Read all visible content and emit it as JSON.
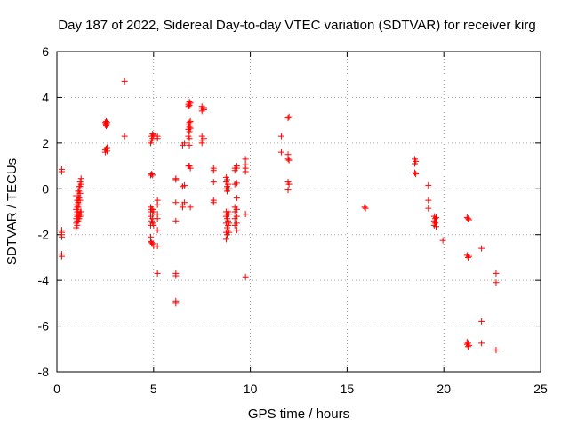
{
  "chart_data": {
    "type": "scatter",
    "title": "Day 187 of 2022, Sidereal Day-to-day VTEC variation (SDTVAR) for receiver kirg",
    "xlabel": "GPS time / hours",
    "ylabel": "SDTVAR / TECUs",
    "xlim": [
      0,
      25
    ],
    "ylim": [
      -8,
      6
    ],
    "xticks": [
      0,
      5,
      10,
      15,
      20,
      25
    ],
    "yticks": [
      -8,
      -6,
      -4,
      -2,
      0,
      2,
      4,
      6
    ],
    "grid": true,
    "marker": "+",
    "series": [
      {
        "name": "SDTVAR",
        "color": "#ff0000",
        "points": [
          [
            0.25,
            0.85
          ],
          [
            0.25,
            0.75
          ],
          [
            0.25,
            -1.8
          ],
          [
            0.25,
            -1.9
          ],
          [
            0.25,
            -2.0
          ],
          [
            0.25,
            -2.1
          ],
          [
            0.25,
            -2.85
          ],
          [
            0.25,
            -2.95
          ],
          [
            1.0,
            -0.3
          ],
          [
            1.0,
            -0.7
          ],
          [
            1.0,
            -0.9
          ],
          [
            1.0,
            -1.1
          ],
          [
            1.0,
            -1.3
          ],
          [
            1.0,
            -1.5
          ],
          [
            1.0,
            -1.7
          ],
          [
            1.05,
            -0.5
          ],
          [
            1.05,
            -0.8
          ],
          [
            1.05,
            -1.0
          ],
          [
            1.05,
            -1.2
          ],
          [
            1.05,
            -1.4
          ],
          [
            1.05,
            -1.6
          ],
          [
            1.1,
            -0.1
          ],
          [
            1.1,
            -0.3
          ],
          [
            1.1,
            -0.5
          ],
          [
            1.1,
            -0.6
          ],
          [
            1.1,
            -0.8
          ],
          [
            1.1,
            -1.0
          ],
          [
            1.1,
            -1.2
          ],
          [
            1.1,
            -1.4
          ],
          [
            1.15,
            0.1
          ],
          [
            1.15,
            -0.1
          ],
          [
            1.15,
            -0.4
          ],
          [
            1.15,
            -0.7
          ],
          [
            1.15,
            -1.1
          ],
          [
            1.15,
            -1.3
          ],
          [
            1.2,
            0.3
          ],
          [
            1.2,
            0.1
          ],
          [
            1.2,
            -0.2
          ],
          [
            1.2,
            -0.5
          ],
          [
            1.2,
            -1.0
          ],
          [
            1.2,
            -1.2
          ],
          [
            1.25,
            0.45
          ],
          [
            1.25,
            0.2
          ],
          [
            1.25,
            -1.0
          ],
          [
            1.25,
            -1.1
          ],
          [
            2.5,
            2.9
          ],
          [
            2.5,
            2.8
          ],
          [
            2.55,
            2.95
          ],
          [
            2.55,
            2.85
          ],
          [
            2.55,
            2.75
          ],
          [
            2.6,
            2.9
          ],
          [
            2.6,
            2.8
          ],
          [
            2.5,
            1.7
          ],
          [
            2.5,
            1.6
          ],
          [
            2.55,
            1.75
          ],
          [
            2.6,
            1.65
          ],
          [
            2.6,
            1.8
          ],
          [
            3.5,
            4.7
          ],
          [
            3.5,
            2.3
          ],
          [
            4.85,
            -0.8
          ],
          [
            4.85,
            -1.0
          ],
          [
            4.85,
            -1.2
          ],
          [
            4.85,
            -1.6
          ],
          [
            4.85,
            -2.1
          ],
          [
            4.85,
            -2.3
          ],
          [
            4.85,
            2.0
          ],
          [
            4.85,
            0.6
          ],
          [
            4.9,
            2.3
          ],
          [
            4.9,
            2.1
          ],
          [
            4.9,
            0.65
          ],
          [
            4.9,
            -0.9
          ],
          [
            4.9,
            -1.4
          ],
          [
            4.9,
            -2.35
          ],
          [
            4.95,
            2.4
          ],
          [
            4.95,
            2.2
          ],
          [
            4.95,
            0.6
          ],
          [
            4.95,
            -0.9
          ],
          [
            4.95,
            -1.1
          ],
          [
            4.95,
            -1.3
          ],
          [
            4.95,
            -1.5
          ],
          [
            4.95,
            -2.4
          ],
          [
            5.0,
            2.35
          ],
          [
            5.0,
            -1.0
          ],
          [
            5.0,
            -1.6
          ],
          [
            5.0,
            -2.5
          ],
          [
            5.2,
            2.3
          ],
          [
            5.2,
            2.2
          ],
          [
            5.2,
            -0.5
          ],
          [
            5.2,
            -0.7
          ],
          [
            5.2,
            -1.1
          ],
          [
            5.2,
            -1.3
          ],
          [
            5.2,
            -1.8
          ],
          [
            5.2,
            -2.5
          ],
          [
            5.2,
            -3.7
          ],
          [
            6.15,
            0.45
          ],
          [
            6.15,
            0.4
          ],
          [
            6.15,
            -0.6
          ],
          [
            6.15,
            -1.4
          ],
          [
            6.15,
            -3.7
          ],
          [
            6.15,
            -3.8
          ],
          [
            6.15,
            -4.9
          ],
          [
            6.15,
            -5.0
          ],
          [
            6.5,
            1.9
          ],
          [
            6.5,
            0.1
          ],
          [
            6.5,
            -0.7
          ],
          [
            6.5,
            -0.8
          ],
          [
            6.6,
            2.0
          ],
          [
            6.6,
            0.15
          ],
          [
            6.6,
            -0.6
          ],
          [
            6.8,
            3.7
          ],
          [
            6.8,
            3.6
          ],
          [
            6.8,
            2.8
          ],
          [
            6.8,
            2.6
          ],
          [
            6.8,
            2.3
          ],
          [
            6.8,
            1.0
          ],
          [
            6.85,
            3.8
          ],
          [
            6.85,
            3.65
          ],
          [
            6.85,
            2.9
          ],
          [
            6.85,
            2.7
          ],
          [
            6.85,
            2.5
          ],
          [
            6.85,
            2.2
          ],
          [
            6.85,
            1.9
          ],
          [
            6.85,
            1.0
          ],
          [
            6.9,
            3.75
          ],
          [
            6.9,
            2.95
          ],
          [
            6.9,
            2.65
          ],
          [
            6.9,
            0.9
          ],
          [
            6.9,
            -0.8
          ],
          [
            7.5,
            3.6
          ],
          [
            7.5,
            3.5
          ],
          [
            7.5,
            3.4
          ],
          [
            7.5,
            2.3
          ],
          [
            7.5,
            2.1
          ],
          [
            7.5,
            2.0
          ],
          [
            7.6,
            3.55
          ],
          [
            7.6,
            3.45
          ],
          [
            7.6,
            2.2
          ],
          [
            8.1,
            0.9
          ],
          [
            8.1,
            0.8
          ],
          [
            8.1,
            0.3
          ],
          [
            8.1,
            -0.5
          ],
          [
            8.1,
            -0.6
          ],
          [
            8.75,
            0.5
          ],
          [
            8.75,
            0.3
          ],
          [
            8.75,
            0.0
          ],
          [
            8.75,
            -1.0
          ],
          [
            8.75,
            -1.2
          ],
          [
            8.75,
            -1.5
          ],
          [
            8.75,
            -1.9
          ],
          [
            8.75,
            -2.2
          ],
          [
            8.8,
            0.4
          ],
          [
            8.8,
            0.1
          ],
          [
            8.8,
            -0.1
          ],
          [
            8.8,
            -1.1
          ],
          [
            8.8,
            -1.3
          ],
          [
            8.8,
            -1.7
          ],
          [
            8.8,
            -2.0
          ],
          [
            8.85,
            0.2
          ],
          [
            8.85,
            -1.0
          ],
          [
            8.85,
            -1.4
          ],
          [
            8.85,
            -1.6
          ],
          [
            8.85,
            -1.8
          ],
          [
            8.9,
            0.0
          ],
          [
            8.9,
            -1.1
          ],
          [
            8.9,
            -1.5
          ],
          [
            8.9,
            -1.9
          ],
          [
            9.2,
            0.9
          ],
          [
            9.2,
            0.8
          ],
          [
            9.2,
            0.2
          ],
          [
            9.2,
            -0.8
          ],
          [
            9.2,
            -1.0
          ],
          [
            9.2,
            -1.3
          ],
          [
            9.2,
            -1.6
          ],
          [
            9.3,
            1.0
          ],
          [
            9.3,
            0.9
          ],
          [
            9.3,
            0.25
          ],
          [
            9.3,
            -0.4
          ],
          [
            9.3,
            -0.9
          ],
          [
            9.3,
            -1.2
          ],
          [
            9.3,
            -1.5
          ],
          [
            9.3,
            -1.8
          ],
          [
            9.75,
            1.3
          ],
          [
            9.75,
            1.05
          ],
          [
            9.75,
            0.9
          ],
          [
            9.75,
            0.75
          ],
          [
            9.75,
            -1.1
          ],
          [
            9.75,
            -3.85
          ],
          [
            11.6,
            2.3
          ],
          [
            11.6,
            1.6
          ],
          [
            11.95,
            3.1
          ],
          [
            11.95,
            1.5
          ],
          [
            11.95,
            1.3
          ],
          [
            11.95,
            0.3
          ],
          [
            11.95,
            -0.05
          ],
          [
            12.0,
            3.15
          ],
          [
            12.0,
            1.25
          ],
          [
            12.0,
            0.2
          ],
          [
            15.9,
            -0.8
          ],
          [
            15.95,
            -0.85
          ],
          [
            18.5,
            1.3
          ],
          [
            18.5,
            1.1
          ],
          [
            18.5,
            0.7
          ],
          [
            18.55,
            1.2
          ],
          [
            18.55,
            0.65
          ],
          [
            19.2,
            0.15
          ],
          [
            19.2,
            -0.5
          ],
          [
            19.2,
            -0.85
          ],
          [
            19.5,
            -1.2
          ],
          [
            19.5,
            -1.4
          ],
          [
            19.5,
            -1.6
          ],
          [
            19.55,
            -1.3
          ],
          [
            19.55,
            -1.5
          ],
          [
            19.6,
            -1.25
          ],
          [
            19.6,
            -1.45
          ],
          [
            19.6,
            -1.65
          ],
          [
            19.95,
            -2.25
          ],
          [
            21.2,
            -1.25
          ],
          [
            21.2,
            -2.9
          ],
          [
            21.2,
            -6.7
          ],
          [
            21.2,
            -6.8
          ],
          [
            21.25,
            -1.3
          ],
          [
            21.25,
            -3.0
          ],
          [
            21.25,
            -6.75
          ],
          [
            21.25,
            -6.9
          ],
          [
            21.3,
            -1.35
          ],
          [
            21.3,
            -2.95
          ],
          [
            21.3,
            -6.85
          ],
          [
            21.95,
            -2.6
          ],
          [
            21.95,
            -5.8
          ],
          [
            21.95,
            -6.75
          ],
          [
            22.7,
            -3.7
          ],
          [
            22.7,
            -4.1
          ],
          [
            22.7,
            -7.05
          ]
        ]
      }
    ]
  }
}
